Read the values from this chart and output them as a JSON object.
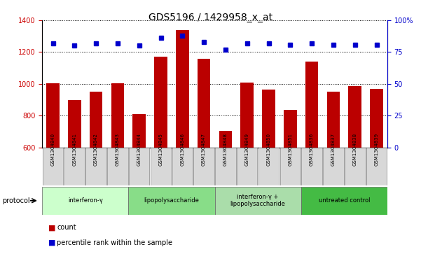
{
  "title": "GDS5196 / 1429958_x_at",
  "samples": [
    "GSM1304840",
    "GSM1304841",
    "GSM1304842",
    "GSM1304843",
    "GSM1304844",
    "GSM1304845",
    "GSM1304846",
    "GSM1304847",
    "GSM1304848",
    "GSM1304849",
    "GSM1304850",
    "GSM1304851",
    "GSM1304836",
    "GSM1304837",
    "GSM1304838",
    "GSM1304839"
  ],
  "counts": [
    1005,
    898,
    952,
    1003,
    808,
    1173,
    1340,
    1158,
    703,
    1010,
    963,
    835,
    1140,
    952,
    985,
    970
  ],
  "percentile_ranks": [
    82,
    80,
    82,
    82,
    80,
    86,
    88,
    83,
    77,
    82,
    82,
    81,
    82,
    81,
    81,
    81
  ],
  "groups": [
    {
      "label": "interferon-γ",
      "start": 0,
      "end": 4,
      "color": "#ccffcc"
    },
    {
      "label": "lipopolysaccharide",
      "start": 4,
      "end": 8,
      "color": "#88dd88"
    },
    {
      "label": "interferon-γ +\nlipopolysaccharide",
      "start": 8,
      "end": 12,
      "color": "#aaddaa"
    },
    {
      "label": "untreated control",
      "start": 12,
      "end": 16,
      "color": "#44bb44"
    }
  ],
  "ylim_left": [
    600,
    1400
  ],
  "ylim_right": [
    0,
    100
  ],
  "bar_color": "#bb0000",
  "dot_color": "#0000cc",
  "grid_color": "#000000",
  "axis_color_left": "#cc0000",
  "axis_color_right": "#0000cc",
  "protocol_label": "protocol",
  "legend_count": "count",
  "legend_percentile": "percentile rank within the sample",
  "title_fontsize": 10,
  "tick_fontsize": 7,
  "label_fontsize": 7,
  "group_colors": [
    "#ccffcc",
    "#88dd88",
    "#aaddaa",
    "#44bb44"
  ]
}
